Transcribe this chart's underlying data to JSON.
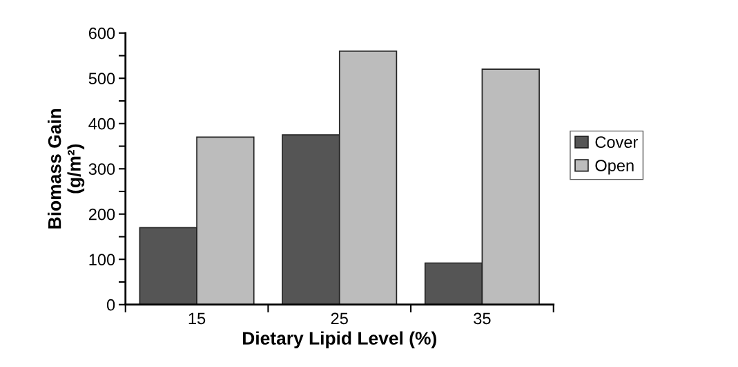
{
  "chart_data": {
    "type": "bar",
    "xlabel": "Dietary Lipid Level (%)",
    "ylabel": "Biomass Gain\n(g/m²)",
    "categories": [
      "15",
      "25",
      "35"
    ],
    "series": [
      {
        "name": "Cover",
        "color": "#555555",
        "values": [
          170,
          375,
          92
        ]
      },
      {
        "name": "Open",
        "color": "#bcbcbc",
        "values": [
          370,
          560,
          520
        ]
      }
    ],
    "ylim": [
      0,
      600
    ],
    "yticks": [
      0,
      {
        "value": 50,
        "label": null
      },
      100,
      {
        "value": 150,
        "label": null
      },
      200,
      {
        "value": 250,
        "label": null
      },
      300,
      {
        "value": 350,
        "label": null
      },
      400,
      {
        "value": 450,
        "label": null
      },
      500,
      {
        "value": 550,
        "label": null
      },
      600
    ],
    "grid": false,
    "legend": "right"
  }
}
